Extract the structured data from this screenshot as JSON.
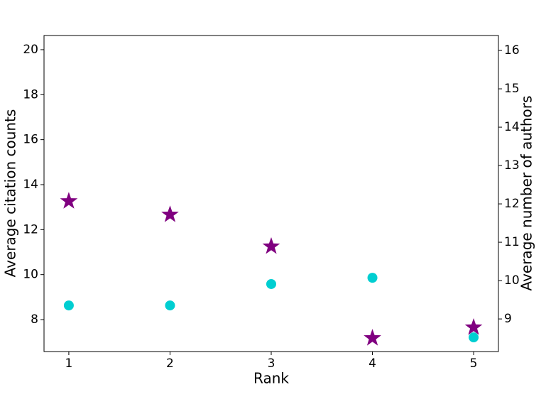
{
  "chart_data": {
    "type": "scatter",
    "xlabel": "Rank",
    "ylabel": "Average citation counts",
    "y2label": "Average number of authors",
    "ylabel_color": "#00ced1",
    "y2label_color": "#800080",
    "xlim": [
      0.755,
      5.245
    ],
    "xticks": [
      1,
      2,
      3,
      4,
      5
    ],
    "ylim": [
      6.58,
      20.63
    ],
    "yticks": [
      8,
      10,
      12,
      14,
      16,
      18,
      20
    ],
    "y2lim": [
      8.15,
      16.39
    ],
    "y2ticks": [
      9,
      10,
      11,
      12,
      13,
      14,
      15,
      16
    ],
    "series": [
      {
        "color": "#00ced1",
        "marker": "circle",
        "x": [
          1,
          2,
          3,
          4,
          5
        ],
        "values": [
          8.63,
          8.63,
          9.58,
          9.86,
          7.21
        ]
      },
      {
        "color": "#800080",
        "marker": "star",
        "axis": "y2",
        "x": [
          1,
          2,
          3,
          4,
          5
        ],
        "values": [
          12.07,
          11.72,
          10.89,
          8.5,
          8.78
        ]
      }
    ]
  }
}
